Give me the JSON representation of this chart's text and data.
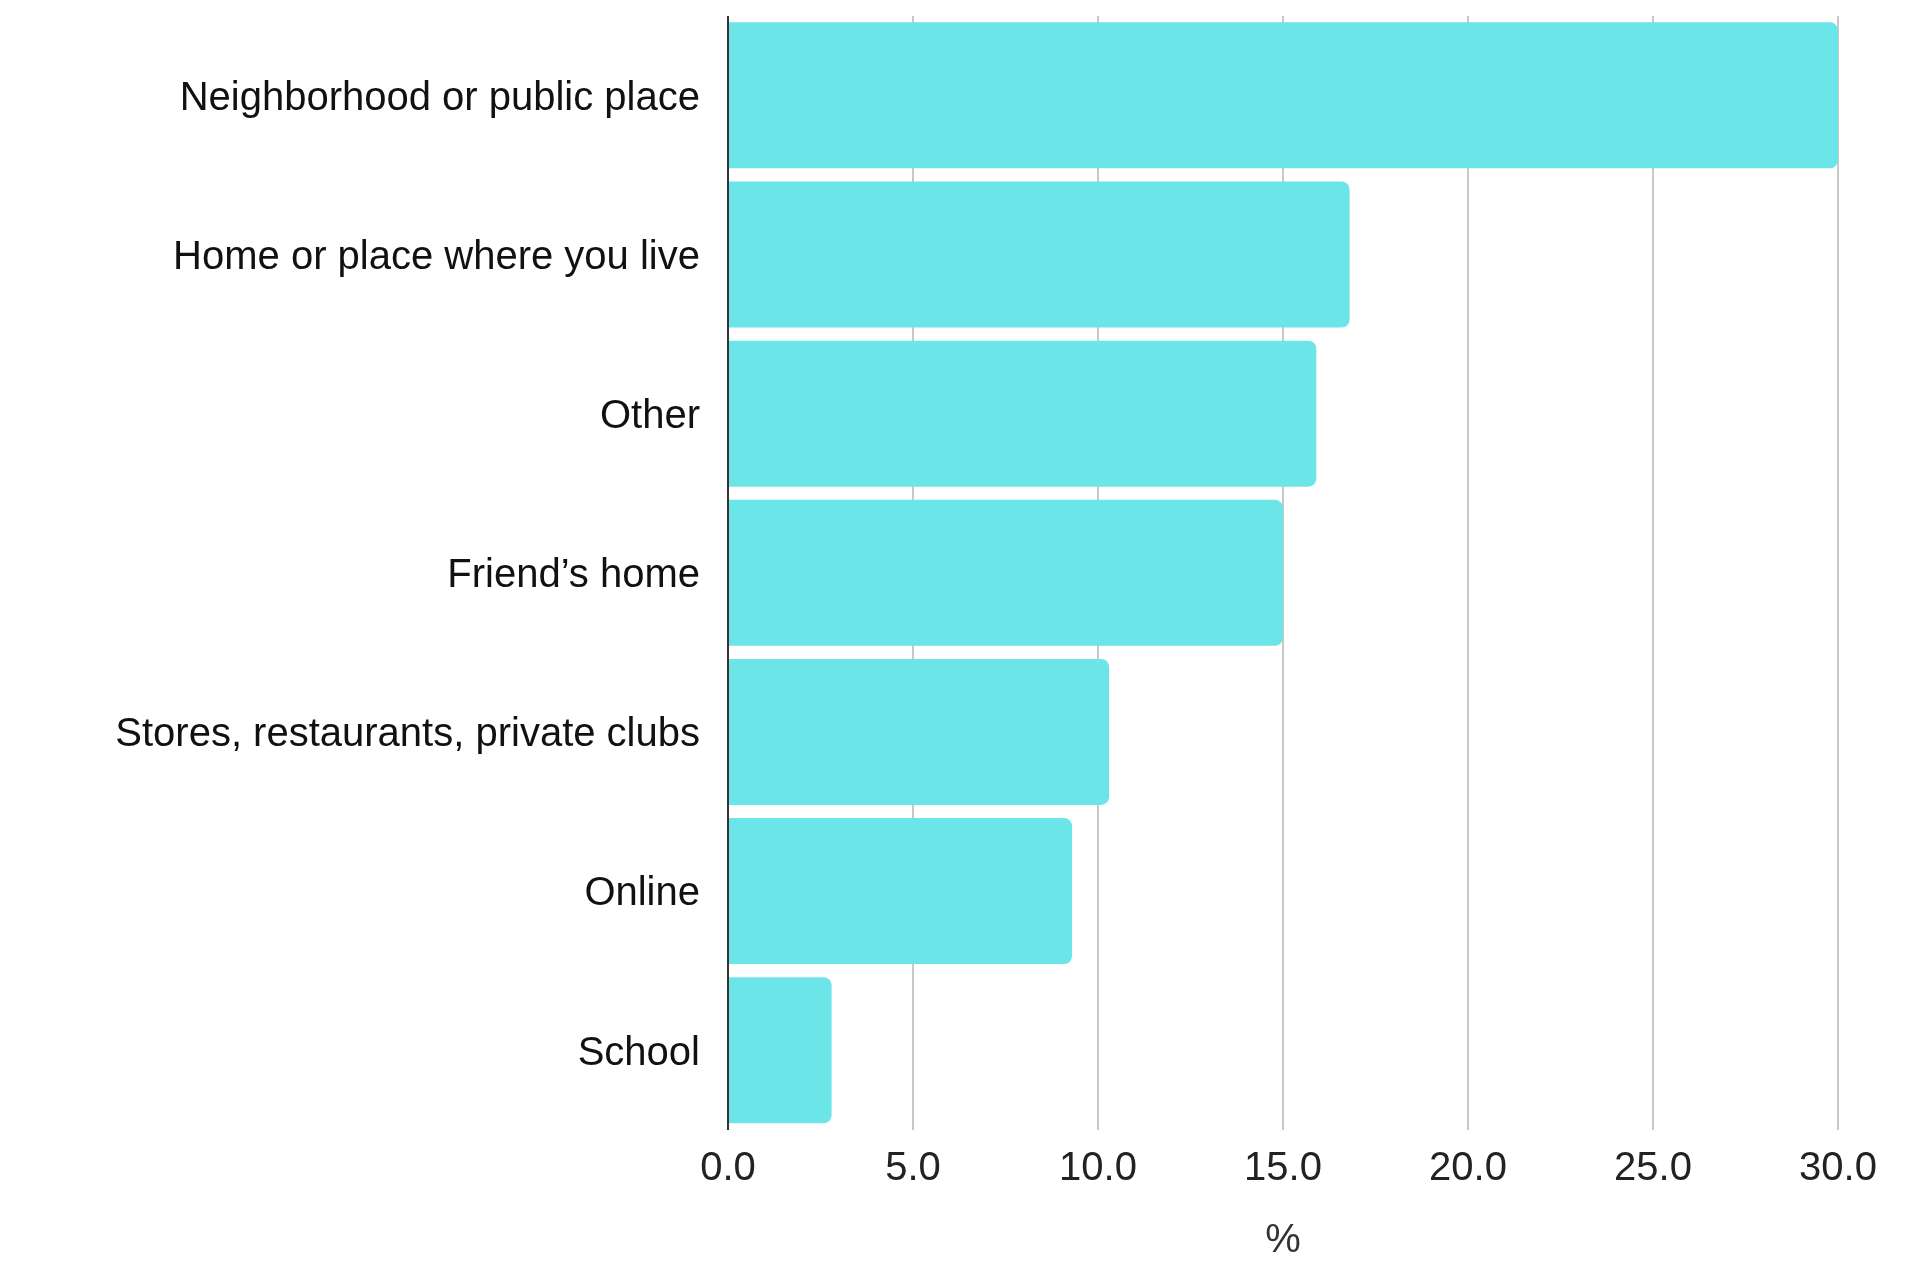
{
  "chart_data": {
    "type": "bar",
    "orientation": "horizontal",
    "xlabel": "%",
    "categories": [
      "Neighborhood or public place",
      "Home or place where you live",
      "Other",
      "Friend’s home",
      "Stores, restaurants, private clubs",
      "Online",
      "School"
    ],
    "values": [
      30.0,
      16.8,
      15.9,
      15.0,
      10.3,
      9.3,
      2.8
    ],
    "color": "#6ce5e8",
    "xlim": [
      0,
      30
    ],
    "xticks": [
      {
        "value": 0,
        "label": "0.0"
      },
      {
        "value": 5,
        "label": "5.0"
      },
      {
        "value": 10,
        "label": "10.0"
      },
      {
        "value": 15,
        "label": "15.0"
      },
      {
        "value": 20,
        "label": "20.0"
      },
      {
        "value": 25,
        "label": "25.0"
      },
      {
        "value": 30,
        "label": "30.0"
      }
    ],
    "grid": "x",
    "legend": false
  }
}
